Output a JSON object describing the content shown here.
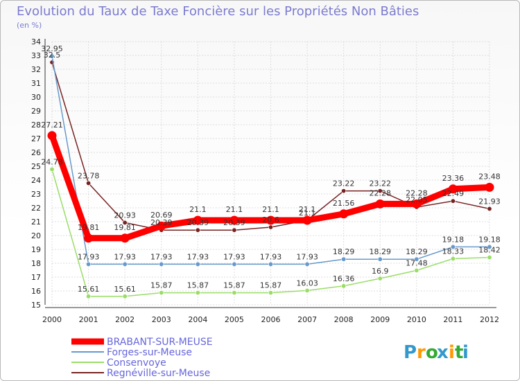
{
  "chart_data": {
    "type": "line",
    "title": "Evolution du Taux de Taxe Foncière sur les Propriétés Non Bâties",
    "subtitle": "(en %)",
    "x": [
      "2000",
      "2001",
      "2002",
      "2003",
      "2004",
      "2005",
      "2006",
      "2007",
      "2008",
      "2009",
      "2010",
      "2011",
      "2012"
    ],
    "ylim": [
      15,
      34
    ],
    "yticks": [
      15,
      16,
      17,
      18,
      19,
      20,
      21,
      22,
      23,
      24,
      25,
      26,
      27,
      28,
      29,
      30,
      31,
      32,
      33,
      34
    ],
    "series": [
      {
        "name": "BRABANT-SUR-MEUSE",
        "color": "#ff0000",
        "values": [
          27.21,
          19.81,
          19.81,
          20.69,
          21.1,
          21.1,
          21.1,
          21.1,
          21.56,
          22.28,
          22.28,
          23.36,
          23.48
        ],
        "labels": [
          "27.21",
          "19.81",
          "19.81",
          "20.69",
          "21.1",
          "21.1",
          "21.1",
          "21.1",
          "21.56",
          "22.28",
          "22.28",
          "23.36",
          "23.48"
        ]
      },
      {
        "name": "Forges-sur-Meuse",
        "color": "#6699cc",
        "values": [
          32.95,
          17.93,
          17.93,
          17.93,
          17.93,
          17.93,
          17.93,
          17.93,
          18.29,
          18.29,
          18.29,
          19.18,
          19.18
        ],
        "labels": [
          "32.95",
          "17.93",
          "17.93",
          "17.93",
          "17.93",
          "17.93",
          "17.93",
          "17.93",
          "18.29",
          "18.29",
          "18.29",
          "19.18",
          "19.18"
        ]
      },
      {
        "name": "Consenvoye",
        "color": "#99dd66",
        "values": [
          24.78,
          15.61,
          15.61,
          15.87,
          15.87,
          15.87,
          15.87,
          16.03,
          16.36,
          16.9,
          17.48,
          18.33,
          18.42
        ],
        "labels": [
          "24.78",
          "15.61",
          "15.61",
          "15.87",
          "15.87",
          "15.87",
          "15.87",
          "16.03",
          "16.36",
          "16.9",
          "17.48",
          "18.33",
          "18.42"
        ]
      },
      {
        "name": "Regnéville-sur-Meuse",
        "color": "#772222",
        "values": [
          32.5,
          23.78,
          20.93,
          20.39,
          20.39,
          20.39,
          20.6,
          21.1,
          23.22,
          23.22,
          22.05,
          22.49,
          21.93
        ],
        "labels": [
          "32.5",
          "23.78",
          "20.93",
          "20.39",
          "20.39",
          "20.39",
          "20.6",
          "21.1",
          "23.22",
          "23.22",
          "22.05",
          "22.49",
          "21.93"
        ]
      }
    ],
    "legend_position": "bottom-left"
  },
  "branding": {
    "logo_text": [
      "P",
      "r",
      "o",
      "x",
      "i",
      "t",
      "i"
    ],
    "logo_colors": [
      "#3399cc",
      "#ff9900",
      "#33aa33",
      "#3399cc",
      "#ff9900",
      "#33aa33",
      "#3399cc"
    ]
  }
}
